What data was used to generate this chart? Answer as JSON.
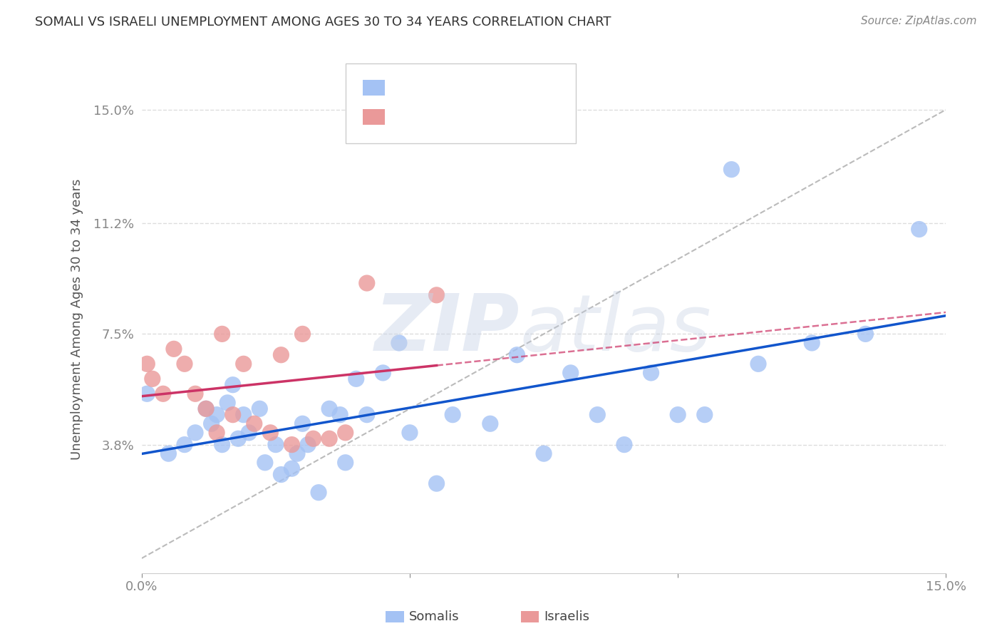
{
  "title": "SOMALI VS ISRAELI UNEMPLOYMENT AMONG AGES 30 TO 34 YEARS CORRELATION CHART",
  "source": "Source: ZipAtlas.com",
  "ylabel": "Unemployment Among Ages 30 to 34 years",
  "xlim": [
    0.0,
    0.15
  ],
  "ylim": [
    -0.005,
    0.165
  ],
  "x_ticks": [
    0.0,
    0.05,
    0.1,
    0.15
  ],
  "x_tick_labels": [
    "0.0%",
    "",
    "",
    "15.0%"
  ],
  "y_ticks": [
    0.038,
    0.075,
    0.112,
    0.15
  ],
  "y_tick_labels": [
    "3.8%",
    "7.5%",
    "11.2%",
    "15.0%"
  ],
  "somali_color": "#a4c2f4",
  "israeli_color": "#ea9999",
  "somali_line_color": "#1155cc",
  "israeli_line_color": "#cc3366",
  "background_color": "#ffffff",
  "somali_x": [
    0.001,
    0.005,
    0.008,
    0.01,
    0.012,
    0.013,
    0.014,
    0.015,
    0.016,
    0.017,
    0.018,
    0.019,
    0.02,
    0.022,
    0.023,
    0.025,
    0.026,
    0.028,
    0.029,
    0.03,
    0.031,
    0.033,
    0.035,
    0.037,
    0.038,
    0.04,
    0.042,
    0.045,
    0.048,
    0.05,
    0.055,
    0.058,
    0.065,
    0.07,
    0.075,
    0.08,
    0.085,
    0.09,
    0.095,
    0.1,
    0.105,
    0.11,
    0.115,
    0.125,
    0.135,
    0.145
  ],
  "somali_y": [
    0.055,
    0.035,
    0.038,
    0.042,
    0.05,
    0.045,
    0.048,
    0.038,
    0.052,
    0.058,
    0.04,
    0.048,
    0.042,
    0.05,
    0.032,
    0.038,
    0.028,
    0.03,
    0.035,
    0.045,
    0.038,
    0.022,
    0.05,
    0.048,
    0.032,
    0.06,
    0.048,
    0.062,
    0.072,
    0.042,
    0.025,
    0.048,
    0.045,
    0.068,
    0.035,
    0.062,
    0.048,
    0.038,
    0.062,
    0.048,
    0.048,
    0.13,
    0.065,
    0.072,
    0.075,
    0.11
  ],
  "israeli_x": [
    0.001,
    0.002,
    0.004,
    0.006,
    0.008,
    0.01,
    0.012,
    0.014,
    0.015,
    0.017,
    0.019,
    0.021,
    0.024,
    0.026,
    0.028,
    0.03,
    0.032,
    0.035,
    0.038,
    0.042,
    0.055
  ],
  "israeli_y": [
    0.065,
    0.06,
    0.055,
    0.07,
    0.065,
    0.055,
    0.05,
    0.042,
    0.075,
    0.048,
    0.065,
    0.045,
    0.042,
    0.068,
    0.038,
    0.075,
    0.04,
    0.04,
    0.042,
    0.092,
    0.088
  ],
  "diag_color": "#bbbbbb",
  "watermark_zip_color": "#c8d4e8",
  "watermark_atlas_color": "#c0cce0"
}
